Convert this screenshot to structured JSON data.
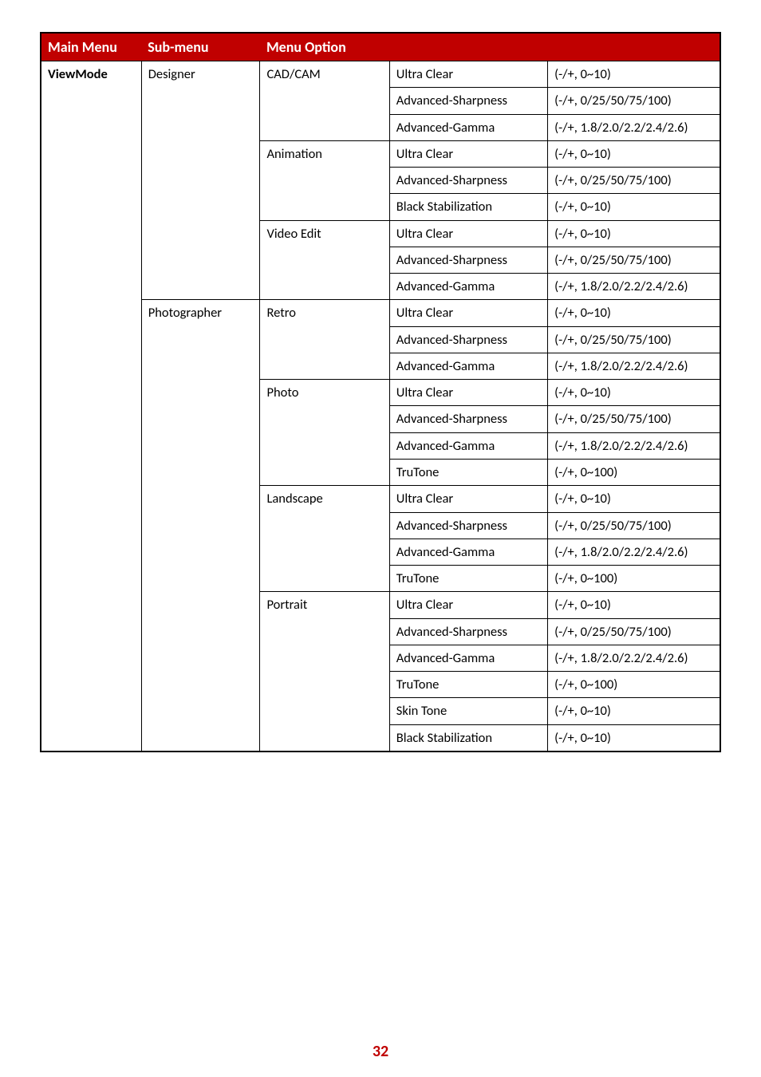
{
  "page_number": "32",
  "headers": {
    "main_menu": "Main Menu",
    "sub_menu": "Sub-menu",
    "menu_option": "Menu Option"
  },
  "main_menu_label": "ViewMode",
  "sub_menus": [
    {
      "name": "Designer",
      "options": [
        {
          "name": "CAD/CAM",
          "params": [
            {
              "label": "Ultra Clear",
              "range": "(-/+, 0~10)"
            },
            {
              "label": "Advanced-Sharpness",
              "range": "(-/+, 0/25/50/75/100)"
            },
            {
              "label": "Advanced-Gamma",
              "range": "(-/+, 1.8/2.0/2.2/2.4/2.6)"
            }
          ]
        },
        {
          "name": "Animation",
          "params": [
            {
              "label": "Ultra Clear",
              "range": "(-/+, 0~10)"
            },
            {
              "label": "Advanced-Sharpness",
              "range": "(-/+, 0/25/50/75/100)"
            },
            {
              "label": "Black Stabilization",
              "range": "(-/+, 0~10)"
            }
          ]
        },
        {
          "name": "Video Edit",
          "params": [
            {
              "label": "Ultra Clear",
              "range": "(-/+, 0~10)"
            },
            {
              "label": "Advanced-Sharpness",
              "range": "(-/+, 0/25/50/75/100)"
            },
            {
              "label": "Advanced-Gamma",
              "range": "(-/+, 1.8/2.0/2.2/2.4/2.6)"
            }
          ]
        }
      ]
    },
    {
      "name": "Photographer",
      "options": [
        {
          "name": "Retro",
          "params": [
            {
              "label": "Ultra Clear",
              "range": "(-/+, 0~10)"
            },
            {
              "label": "Advanced-Sharpness",
              "range": "(-/+, 0/25/50/75/100)"
            },
            {
              "label": "Advanced-Gamma",
              "range": "(-/+, 1.8/2.0/2.2/2.4/2.6)"
            }
          ]
        },
        {
          "name": "Photo",
          "params": [
            {
              "label": "Ultra Clear",
              "range": "(-/+, 0~10)"
            },
            {
              "label": "Advanced-Sharpness",
              "range": "(-/+, 0/25/50/75/100)"
            },
            {
              "label": "Advanced-Gamma",
              "range": "(-/+, 1.8/2.0/2.2/2.4/2.6)"
            },
            {
              "label": "TruTone",
              "range": "(-/+, 0~100)"
            }
          ]
        },
        {
          "name": "Landscape",
          "params": [
            {
              "label": "Ultra Clear",
              "range": "(-/+, 0~10)"
            },
            {
              "label": "Advanced-Sharpness",
              "range": "(-/+, 0/25/50/75/100)"
            },
            {
              "label": "Advanced-Gamma",
              "range": "(-/+, 1.8/2.0/2.2/2.4/2.6)"
            },
            {
              "label": "TruTone",
              "range": "(-/+, 0~100)"
            }
          ]
        },
        {
          "name": "Portrait",
          "params": [
            {
              "label": "Ultra Clear",
              "range": "(-/+, 0~10)"
            },
            {
              "label": "Advanced-Sharpness",
              "range": "(-/+, 0/25/50/75/100)"
            },
            {
              "label": "Advanced-Gamma",
              "range": "(-/+, 1.8/2.0/2.2/2.4/2.6)"
            },
            {
              "label": "TruTone",
              "range": "(-/+, 0~100)"
            },
            {
              "label": "Skin Tone",
              "range": "(-/+, 0~10)"
            },
            {
              "label": "Black Stabilization",
              "range": "(-/+, 0~10)"
            }
          ]
        }
      ]
    }
  ]
}
